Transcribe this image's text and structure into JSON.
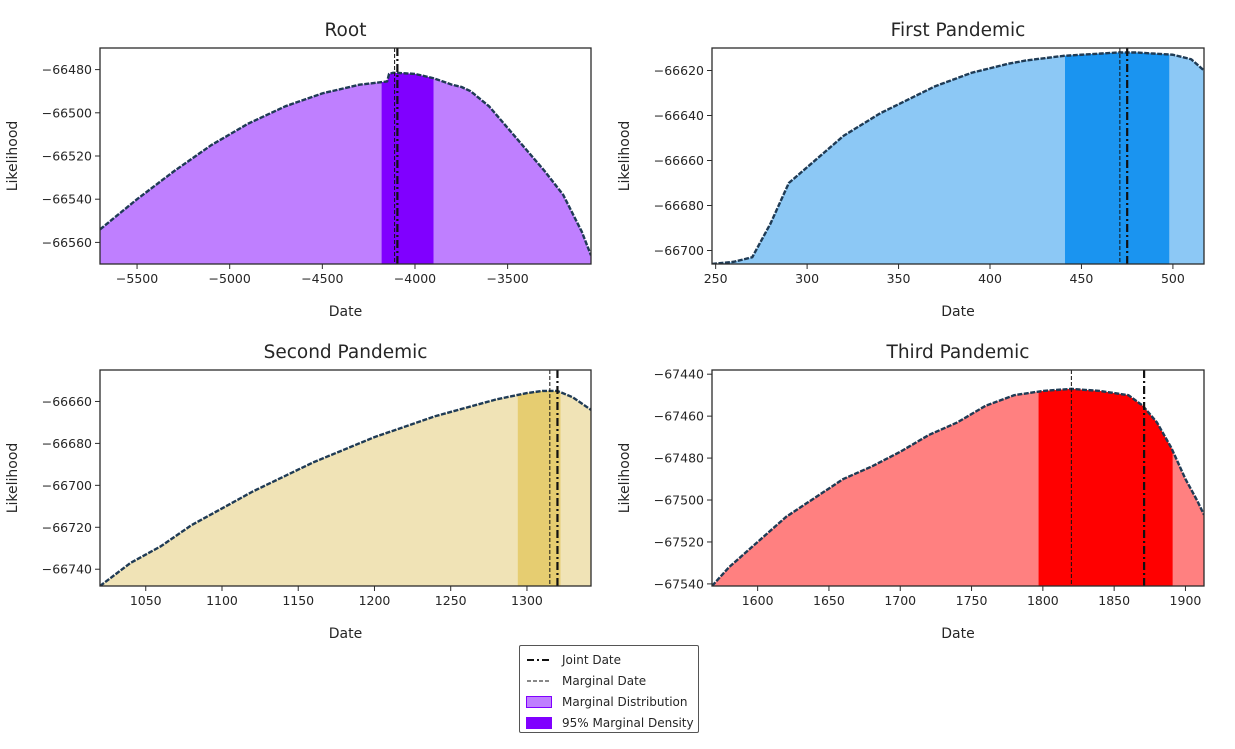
{
  "legend": {
    "joint_date": "Joint Date",
    "marginal_date": "Marginal Date",
    "marginal_distribution": "Marginal Distribution",
    "marginal_density": "95% Marginal Density",
    "distribution_swatch_color": "#bf7fff",
    "density_swatch_color": "#8000ff"
  },
  "chart_data": [
    {
      "type": "area",
      "title": "Root",
      "xlabel": "Date",
      "ylabel": "Likelihood",
      "xlim": [
        -5700,
        -3050
      ],
      "ylim": [
        -66570,
        -66470
      ],
      "xticks": [
        -5500,
        -5000,
        -4500,
        -4000,
        -3500
      ],
      "yticks": [
        -66560,
        -66540,
        -66520,
        -66500,
        -66480
      ],
      "xtick_labels": [
        "−5500",
        "−5000",
        "−4500",
        "−4000",
        "−3500"
      ],
      "ytick_labels": [
        "−66560",
        "−66540",
        "−66520",
        "−66500",
        "−66480"
      ],
      "fill_color": "#bf7fff",
      "density_color": "#8000ff",
      "line_color": "#1f3b55",
      "interval_95": [
        -4180,
        -3900
      ],
      "joint_date": -4095,
      "marginal_date": -4110,
      "x": [
        -5700,
        -5500,
        -5300,
        -5100,
        -4900,
        -4700,
        -4500,
        -4300,
        -4200,
        -4150,
        -4140,
        -4120,
        -4100,
        -4000,
        -3900,
        -3800,
        -3750,
        -3700,
        -3600,
        -3500,
        -3400,
        -3300,
        -3200,
        -3100,
        -3050
      ],
      "y": [
        -66554,
        -66540,
        -66527,
        -66515,
        -66505,
        -66497,
        -66491,
        -66487,
        -66486,
        -66485.5,
        -66482,
        -66481.5,
        -66481.5,
        -66482,
        -66484,
        -66487,
        -66488,
        -66490,
        -66497,
        -66507,
        -66517,
        -66527,
        -66538,
        -66555,
        -66566
      ]
    },
    {
      "type": "area",
      "title": "First Pandemic",
      "xlabel": "Date",
      "ylabel": "Likelihood",
      "xlim": [
        248,
        517
      ],
      "ylim": [
        -66706,
        -66610
      ],
      "xticks": [
        250,
        300,
        350,
        400,
        450,
        500
      ],
      "yticks": [
        -66700,
        -66680,
        -66660,
        -66640,
        -66620
      ],
      "xtick_labels": [
        "250",
        "300",
        "350",
        "400",
        "450",
        "500"
      ],
      "ytick_labels": [
        "−66700",
        "−66680",
        "−66660",
        "−66640",
        "−66620"
      ],
      "fill_color": "#8cc8f5",
      "density_color": "#1a94f0",
      "line_color": "#1f3b55",
      "interval_95": [
        441,
        498
      ],
      "joint_date": 475,
      "marginal_date": 471,
      "x": [
        248,
        260,
        270,
        280,
        290,
        300,
        310,
        320,
        330,
        340,
        350,
        360,
        370,
        380,
        390,
        400,
        410,
        420,
        430,
        440,
        450,
        460,
        470,
        475,
        480,
        490,
        500,
        510,
        517
      ],
      "y": [
        -66706,
        -66705,
        -66703,
        -66688,
        -66670,
        -66663,
        -66656,
        -66649,
        -66644,
        -66639,
        -66635,
        -66631,
        -66627,
        -66624,
        -66621,
        -66619,
        -66617,
        -66615.5,
        -66614.5,
        -66613.5,
        -66613,
        -66612.5,
        -66612,
        -66612,
        -66612,
        -66612.5,
        -66613,
        -66615,
        -66620
      ]
    },
    {
      "type": "area",
      "title": "Second Pandemic",
      "xlabel": "Date",
      "ylabel": "Likelihood",
      "xlim": [
        1020,
        1342
      ],
      "ylim": [
        -66748,
        -66645
      ],
      "xticks": [
        1050,
        1100,
        1150,
        1200,
        1250,
        1300
      ],
      "yticks": [
        -66740,
        -66720,
        -66700,
        -66680,
        -66660
      ],
      "xtick_labels": [
        "1050",
        "1100",
        "1150",
        "1200",
        "1250",
        "1300"
      ],
      "ytick_labels": [
        "−66740",
        "−66720",
        "−66700",
        "−66680",
        "−66660"
      ],
      "fill_color": "#f0e3b6",
      "density_color": "#e6cd71",
      "line_color": "#1f3b55",
      "interval_95": [
        1294,
        1322
      ],
      "joint_date": 1320,
      "marginal_date": 1315,
      "x": [
        1020,
        1040,
        1060,
        1080,
        1100,
        1120,
        1140,
        1160,
        1180,
        1200,
        1220,
        1240,
        1260,
        1280,
        1290,
        1300,
        1310,
        1320,
        1330,
        1342
      ],
      "y": [
        -66748,
        -66737,
        -66729,
        -66719,
        -66711,
        -66703,
        -66696,
        -66689,
        -66683,
        -66677,
        -66672,
        -66667,
        -66663,
        -66659,
        -66657.5,
        -66656,
        -66655,
        -66655,
        -66658,
        -66664
      ]
    },
    {
      "type": "area",
      "title": "Third Pandemic",
      "xlabel": "Date",
      "ylabel": "Likelihood",
      "xlim": [
        1568,
        1913
      ],
      "ylim": [
        -67541,
        -67438
      ],
      "xticks": [
        1600,
        1650,
        1700,
        1750,
        1800,
        1850,
        1900
      ],
      "yticks": [
        -67540,
        -67520,
        -67500,
        -67480,
        -67460,
        -67440
      ],
      "xtick_labels": [
        "1600",
        "1650",
        "1700",
        "1750",
        "1800",
        "1850",
        "1900"
      ],
      "ytick_labels": [
        "−67540",
        "−67520",
        "−67500",
        "−67480",
        "−67460",
        "−67440"
      ],
      "fill_color": "#ff8080",
      "density_color": "#ff0000",
      "line_color": "#1f3b55",
      "interval_95": [
        1797,
        1891
      ],
      "joint_date": 1871,
      "marginal_date": 1820,
      "x": [
        1568,
        1580,
        1600,
        1620,
        1640,
        1660,
        1680,
        1700,
        1720,
        1740,
        1760,
        1780,
        1800,
        1820,
        1840,
        1860,
        1870,
        1880,
        1890,
        1900,
        1908,
        1913
      ],
      "y": [
        -67541,
        -67532,
        -67520,
        -67508,
        -67499,
        -67490,
        -67484,
        -67477,
        -67469,
        -67463,
        -67455,
        -67450,
        -67448,
        -67447,
        -67448,
        -67450,
        -67455,
        -67463,
        -67475,
        -67490,
        -67500,
        -67507
      ]
    }
  ]
}
